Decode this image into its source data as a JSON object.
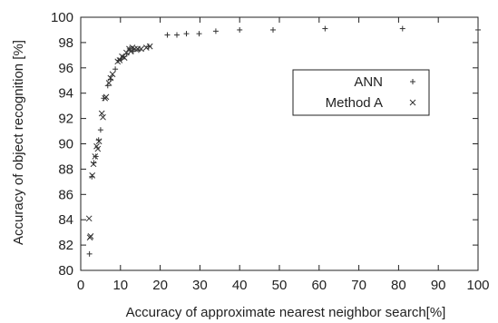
{
  "chart_data": {
    "type": "scatter",
    "xlabel": "Accuracy of approximate nearest neighbor search[%]",
    "ylabel": "Accuracy of object recognition [%]",
    "xlim": [
      0,
      100
    ],
    "ylim": [
      80,
      100
    ],
    "xticks": [
      "0",
      "10",
      "20",
      "30",
      "40",
      "50",
      "60",
      "70",
      "80",
      "90",
      "100"
    ],
    "yticks": [
      "80",
      "82",
      "84",
      "86",
      "88",
      "90",
      "92",
      "94",
      "96",
      "98",
      "100"
    ],
    "grid": false,
    "legend_position": "top-right",
    "series": [
      {
        "name": "ANN",
        "marker": "plus",
        "color": "#333333",
        "points": [
          [
            2.2,
            81.3
          ],
          [
            2.8,
            87.4
          ],
          [
            3.3,
            88.5
          ],
          [
            3.8,
            89.0
          ],
          [
            4.5,
            90.3
          ],
          [
            5.0,
            91.1
          ],
          [
            5.8,
            93.6
          ],
          [
            6.8,
            94.6
          ],
          [
            7.5,
            95.1
          ],
          [
            8.7,
            95.9
          ],
          [
            9.5,
            96.6
          ],
          [
            10.2,
            96.7
          ],
          [
            10.8,
            96.9
          ],
          [
            11.6,
            97.1
          ],
          [
            12.3,
            97.5
          ],
          [
            13.2,
            97.3
          ],
          [
            14.6,
            97.4
          ],
          [
            17.1,
            97.7
          ],
          [
            21.8,
            98.6
          ],
          [
            24.2,
            98.6
          ],
          [
            26.6,
            98.7
          ],
          [
            29.8,
            98.7
          ],
          [
            34.0,
            98.9
          ],
          [
            40.0,
            99.0
          ],
          [
            48.4,
            99.0
          ],
          [
            61.5,
            99.1
          ],
          [
            81.0,
            99.1
          ],
          [
            100.0,
            99.0
          ]
        ]
      },
      {
        "name": "Method A",
        "marker": "cross",
        "color": "#333333",
        "points": [
          [
            2.1,
            84.1
          ],
          [
            2.3,
            82.6
          ],
          [
            2.5,
            82.7
          ],
          [
            2.9,
            87.5
          ],
          [
            3.2,
            88.4
          ],
          [
            3.6,
            89.0
          ],
          [
            4.0,
            89.8
          ],
          [
            4.3,
            89.6
          ],
          [
            4.6,
            90.2
          ],
          [
            5.3,
            92.4
          ],
          [
            5.6,
            92.1
          ],
          [
            6.1,
            93.6
          ],
          [
            6.4,
            93.7
          ],
          [
            7.1,
            94.8
          ],
          [
            7.5,
            95.2
          ],
          [
            8.0,
            95.5
          ],
          [
            9.3,
            96.5
          ],
          [
            9.8,
            96.6
          ],
          [
            10.4,
            96.9
          ],
          [
            11.0,
            96.8
          ],
          [
            11.5,
            97.2
          ],
          [
            12.2,
            97.5
          ],
          [
            12.6,
            97.3
          ],
          [
            13.0,
            97.6
          ],
          [
            13.6,
            97.5
          ],
          [
            14.3,
            97.5
          ],
          [
            15.2,
            97.5
          ],
          [
            16.5,
            97.6
          ],
          [
            17.4,
            97.7
          ]
        ]
      }
    ]
  }
}
